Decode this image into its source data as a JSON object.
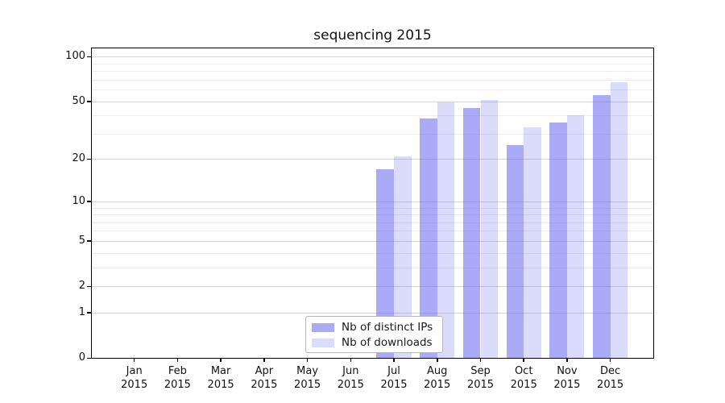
{
  "title": "sequencing 2015",
  "legend": {
    "items": [
      {
        "label": "Nb of distinct IPs",
        "color": "rgba(85,85,238,0.50)"
      },
      {
        "label": "Nb of downloads",
        "color": "rgba(85,85,238,0.21)"
      }
    ]
  },
  "colors": {
    "bar_base": "#5555ee",
    "dark_bar_rendered": "#aaaaf6",
    "light_bar_rendered": "#dbdbfa",
    "grid_major": "#d4d4d4",
    "grid_minor": "#ececec",
    "axis": "#000000"
  },
  "chart_data": {
    "type": "bar",
    "title": "sequencing 2015",
    "categories": [
      "Jan 2015",
      "Feb 2015",
      "Mar 2015",
      "Apr 2015",
      "May 2015",
      "Jun 2015",
      "Jul 2015",
      "Aug 2015",
      "Sep 2015",
      "Oct 2015",
      "Nov 2015",
      "Dec 2015"
    ],
    "x_tick_labels": [
      {
        "month": "Jan",
        "year": "2015"
      },
      {
        "month": "Feb",
        "year": "2015"
      },
      {
        "month": "Mar",
        "year": "2015"
      },
      {
        "month": "Apr",
        "year": "2015"
      },
      {
        "month": "May",
        "year": "2015"
      },
      {
        "month": "Jun",
        "year": "2015"
      },
      {
        "month": "Jul",
        "year": "2015"
      },
      {
        "month": "Aug",
        "year": "2015"
      },
      {
        "month": "Sep",
        "year": "2015"
      },
      {
        "month": "Oct",
        "year": "2015"
      },
      {
        "month": "Nov",
        "year": "2015"
      },
      {
        "month": "Dec",
        "year": "2015"
      }
    ],
    "series": [
      {
        "name": "Nb of distinct IPs",
        "values": [
          0,
          0,
          0,
          0,
          0,
          0,
          17,
          38,
          45,
          25,
          36,
          55
        ],
        "color": "rgba(85,85,238,0.50)"
      },
      {
        "name": "Nb of downloads",
        "values": [
          0,
          0,
          0,
          0,
          0,
          0,
          21,
          49,
          51,
          33,
          40,
          67
        ],
        "color": "rgba(85,85,238,0.21)"
      }
    ],
    "xlabel": "",
    "ylabel": "",
    "y_scale": "log10(1+v)",
    "y_major_ticks": [
      0,
      1,
      2,
      5,
      10,
      20,
      50,
      100
    ],
    "y_minor_ticks": [
      3,
      4,
      6,
      7,
      8,
      9,
      30,
      40,
      60,
      70,
      80,
      90
    ],
    "ylim": [
      0,
      113
    ],
    "grid": true,
    "legend_position": "lower-center-left-inside"
  }
}
